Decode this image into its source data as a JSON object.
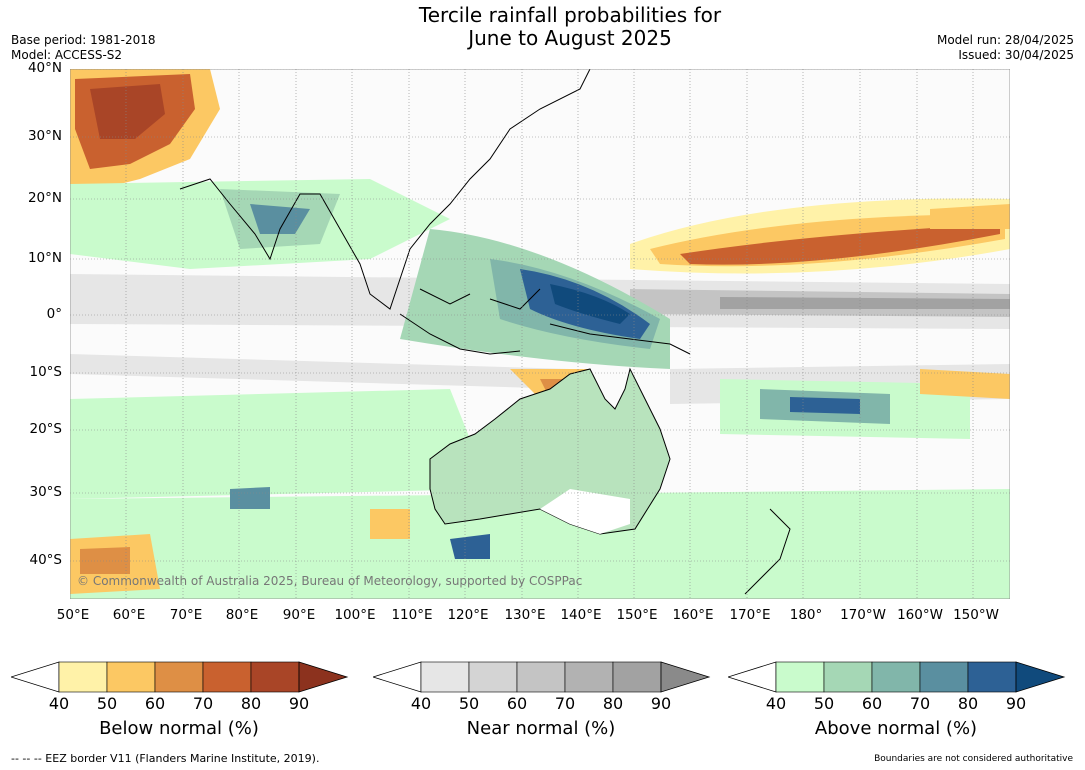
{
  "title_line1": "Tercile rainfall probabilities for",
  "title_line2": "June to August 2025",
  "meta_left": {
    "base_period": "Base period: 1981-2018",
    "model": "Model: ACCESS-S2"
  },
  "meta_right": {
    "model_run": "Model run: 28/04/2025",
    "issued": "Issued: 30/04/2025"
  },
  "lat_labels": [
    "40°N",
    "30°N",
    "20°N",
    "10°N",
    "0°",
    "10°S",
    "20°S",
    "30°S",
    "40°S"
  ],
  "lon_labels": [
    "50°E",
    "60°E",
    "70°E",
    "80°E",
    "90°E",
    "100°E",
    "110°E",
    "120°E",
    "130°E",
    "140°E",
    "150°E",
    "160°E",
    "170°E",
    "180°",
    "170°W",
    "160°W",
    "150°W"
  ],
  "copyright": "© Commonwealth of Australia 2025, Bureau of Meteorology, supported by COSPPac",
  "colorbars": [
    {
      "label": "Below normal (%)",
      "ticks": [
        "40",
        "50",
        "60",
        "70",
        "80",
        "90"
      ],
      "colors": [
        "#fff2a8",
        "#fcc863",
        "#de8f45",
        "#c9612f",
        "#a94527",
        "#8c321e"
      ]
    },
    {
      "label": "Near normal (%)",
      "ticks": [
        "40",
        "50",
        "60",
        "70",
        "80",
        "90"
      ],
      "colors": [
        "#e6e6e6",
        "#d4d4d4",
        "#c4c4c4",
        "#b2b2b2",
        "#a2a2a2",
        "#8a8a8a"
      ]
    },
    {
      "label": "Above normal (%)",
      "ticks": [
        "40",
        "50",
        "60",
        "70",
        "80",
        "90"
      ],
      "colors": [
        "#c9fbcc",
        "#a5d7b5",
        "#81b6aa",
        "#5a8fa0",
        "#2d6195",
        "#104a7c"
      ]
    }
  ],
  "footer_left": "--  --  -- EEZ border V11 (Flanders Marine Institute, 2019).",
  "footer_right": "Boundaries are not considered authoritative"
}
